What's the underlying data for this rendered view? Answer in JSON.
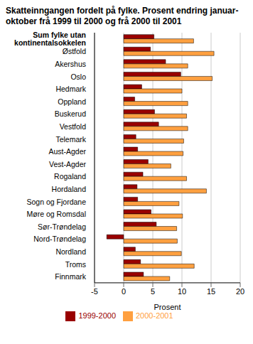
{
  "chart_data": {
    "type": "bar",
    "orientation": "horizontal",
    "title": "Skatteinngangen fordelt på fylke. Prosent endring januar-oktober frå 1999 til 2000 og frå 2000 til 2001",
    "x_label": "Prosent",
    "categories": [
      "Sum fylke utan kontinentalsokkelen",
      "Østfold",
      "Akershus",
      "Oslo",
      "Hedmark",
      "Oppland",
      "Buskerud",
      "Vestfold",
      "Telemark",
      "Aust-Agder",
      "Vest-Agder",
      "Rogaland",
      "Hordaland",
      "Sogn og Fjordane",
      "Møre og Romsdal",
      "Sør-Trøndelag",
      "Nord-Trøndelag",
      "Nordland",
      "Troms",
      "Finnmark"
    ],
    "series": [
      {
        "name": "1999-2000",
        "color": "#990000",
        "values": [
          5.2,
          4.6,
          7.2,
          9.8,
          3.1,
          1.9,
          5.3,
          6.0,
          2.1,
          2.4,
          4.2,
          3.3,
          2.3,
          2.4,
          4.7,
          5.6,
          -2.9,
          2.0,
          2.9,
          3.4
        ]
      },
      {
        "name": "2000-2001",
        "color": "#ffa040",
        "values": [
          12.0,
          15.5,
          11.0,
          15.2,
          10.0,
          11.0,
          10.8,
          11.0,
          10.3,
          10.2,
          8.1,
          10.8,
          14.2,
          9.5,
          10.1,
          9.1,
          9.2,
          9.9,
          12.1,
          7.9
        ]
      }
    ],
    "xlim": [
      -5,
      20
    ],
    "xticks": [
      -5,
      0,
      5,
      10,
      15,
      20
    ],
    "grid": true,
    "legend": "bottom"
  }
}
